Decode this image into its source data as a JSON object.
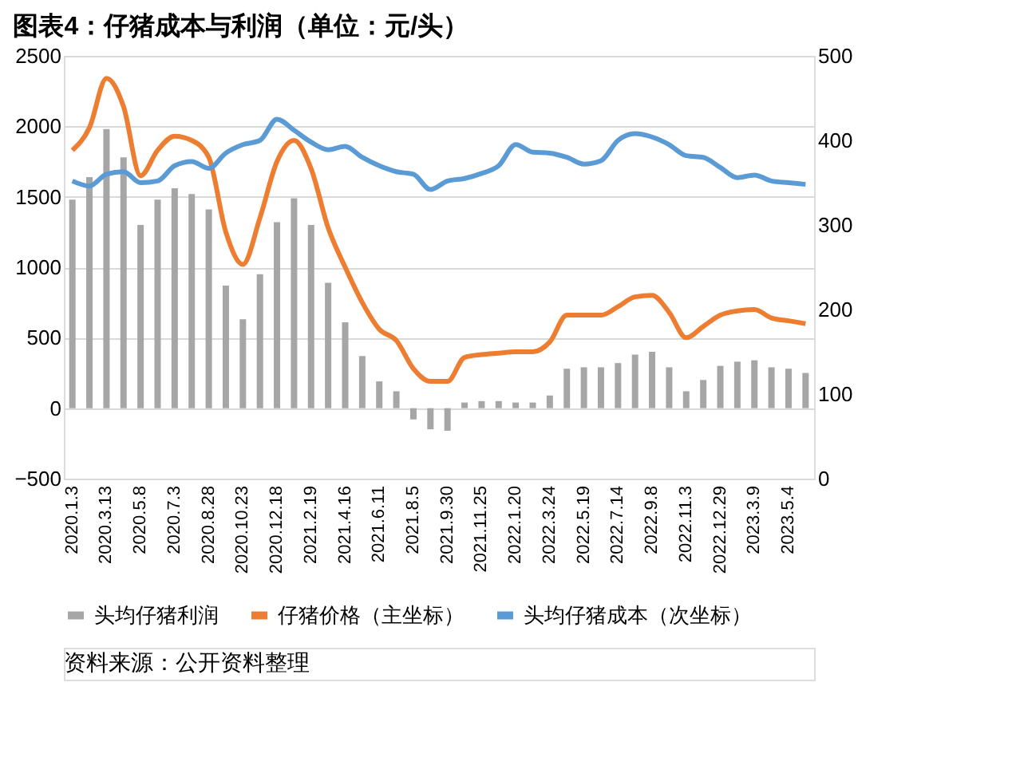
{
  "chart_data": {
    "type": "bar",
    "title": "图表4：仔猪成本与利润（单位：元/头）",
    "categories": [
      "2020.1.3",
      null,
      "2020.3.13",
      null,
      "2020.5.8",
      null,
      "2020.7.3",
      null,
      "2020.8.28",
      null,
      "2020.10.23",
      null,
      "2020.12.18",
      null,
      "2021.2.19",
      null,
      "2021.4.16",
      null,
      "2021.6.11",
      null,
      "2021.8.5",
      null,
      "2021.9.30",
      null,
      "2021.11.25",
      null,
      "2022.1.20",
      null,
      "2022.3.24",
      null,
      "2022.5.19",
      null,
      "2022.7.14",
      null,
      "2022.9.8",
      null,
      "2022.11.3",
      null,
      "2022.12.29",
      null,
      "2023.3.9",
      null,
      "2023.5.4",
      null
    ],
    "series": [
      {
        "name": "头均仔猪利润",
        "axis": "y",
        "color": "#a6a6a6",
        "values": [
          1480,
          1640,
          1980,
          1780,
          1300,
          1480,
          1560,
          1520,
          1410,
          870,
          630,
          950,
          1320,
          1490,
          1300,
          890,
          610,
          370,
          190,
          120,
          -80,
          -150,
          -160,
          40,
          50,
          50,
          40,
          40,
          90,
          280,
          290,
          290,
          320,
          380,
          400,
          290,
          120,
          200,
          300,
          330,
          340,
          290,
          280,
          250
        ]
      },
      {
        "name": "仔猪价格（主坐标）",
        "type": "line",
        "axis": "y",
        "color": "#ed7d31",
        "values": [
          1830,
          1990,
          2340,
          2140,
          1650,
          1830,
          1930,
          1900,
          1780,
          1250,
          1020,
          1350,
          1750,
          1900,
          1700,
          1280,
          1000,
          750,
          560,
          480,
          280,
          190,
          190,
          360,
          380,
          390,
          400,
          400,
          470,
          660,
          660,
          660,
          720,
          790,
          800,
          680,
          500,
          580,
          660,
          690,
          700,
          640,
          620,
          600
        ]
      },
      {
        "name": "头均仔猪成本（次坐标）",
        "type": "line",
        "axis": "y2",
        "color": "#5b9bd5",
        "values": [
          352,
          346,
          360,
          363,
          350,
          352,
          370,
          375,
          367,
          385,
          395,
          400,
          425,
          412,
          398,
          389,
          393,
          380,
          370,
          363,
          360,
          342,
          352,
          355,
          361,
          370,
          395,
          386,
          385,
          380,
          372,
          376,
          400,
          408,
          404,
          395,
          382,
          380,
          368,
          356,
          359,
          352,
          350,
          348
        ]
      }
    ],
    "ylim": [
      -500,
      2500
    ],
    "yticks": [
      -500,
      0,
      500,
      1000,
      1500,
      2000,
      2500
    ],
    "y2lim": [
      0,
      500
    ],
    "y2ticks": [
      0,
      100,
      200,
      300,
      400,
      500
    ],
    "grid": "y",
    "legend": "bottom",
    "annotations": [
      "资料来源：公开资料整理"
    ]
  }
}
